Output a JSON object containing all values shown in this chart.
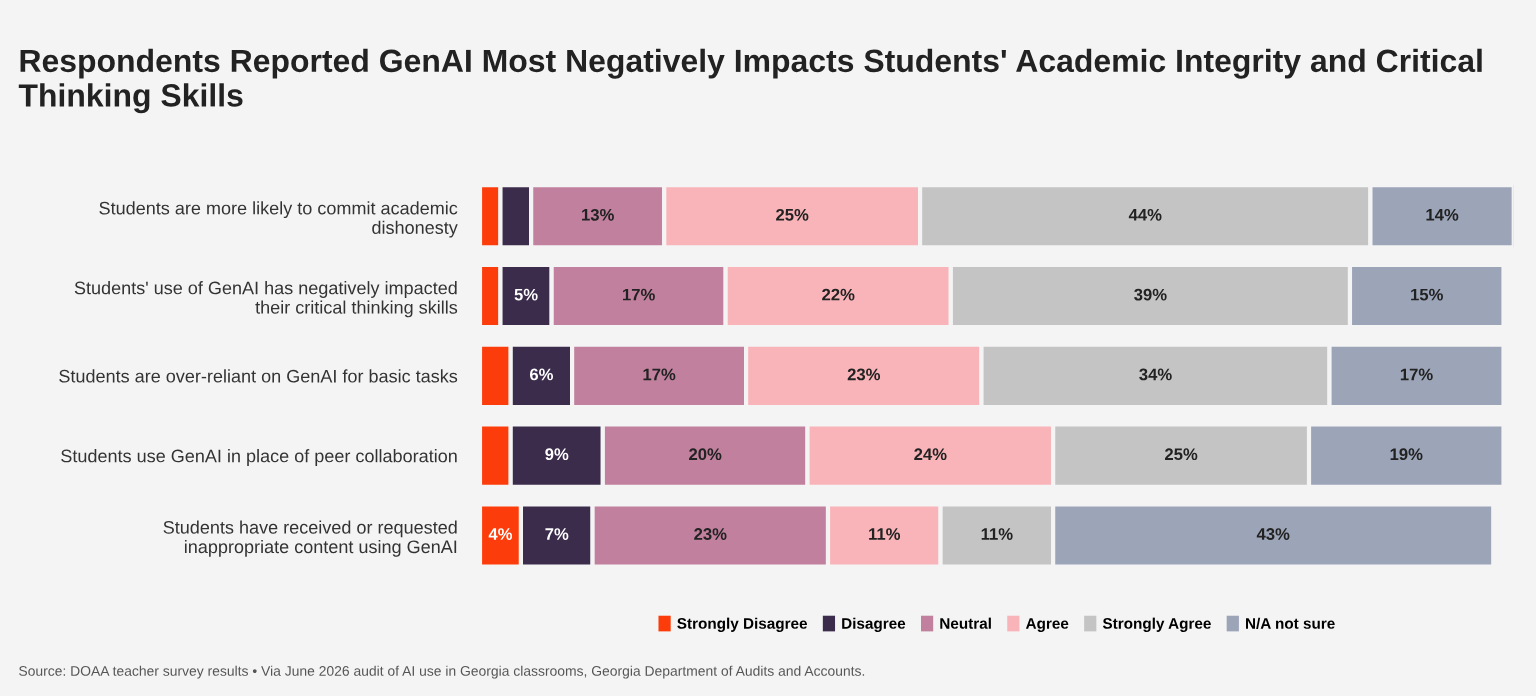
{
  "chart_data": {
    "type": "bar",
    "orientation": "horizontal",
    "stacked": true,
    "title": "Respondents Reported GenAI Most Negatively Impacts Students' Academic Integrity and Critical Thinking Skills",
    "categories": [
      "Students are more likely to commit academic\ndishonesty",
      "Students' use of GenAI has negatively impacted\ntheir critical thinking skills",
      "Students are over-reliant on GenAI for basic tasks",
      "Students use GenAI in place of peer collaboration",
      "Students have received or requested\ninappropriate content using GenAI"
    ],
    "series": [
      {
        "name": "Strongly Disagree",
        "color": "#fc3d0b",
        "values": [
          2,
          2,
          3,
          3,
          4
        ],
        "value_labels": [
          null,
          null,
          null,
          null,
          "4%"
        ]
      },
      {
        "name": "Disagree",
        "color": "#3b2c4c",
        "values": [
          3,
          5,
          6,
          9,
          7
        ],
        "value_labels": [
          null,
          "5%",
          "6%",
          "9%",
          "7%"
        ]
      },
      {
        "name": "Neutral",
        "color": "#c0809e",
        "values": [
          13,
          17,
          17,
          20,
          23
        ],
        "value_labels": [
          "13%",
          "17%",
          "17%",
          "20%",
          "23%"
        ]
      },
      {
        "name": "Agree",
        "color": "#f9b4b9",
        "values": [
          25,
          22,
          23,
          24,
          11
        ],
        "value_labels": [
          "25%",
          "22%",
          "23%",
          "24%",
          "11%"
        ]
      },
      {
        "name": "Strongly Agree",
        "color": "#c4c4c4",
        "values": [
          44,
          39,
          34,
          25,
          11
        ],
        "value_labels": [
          "44%",
          "39%",
          "34%",
          "25%",
          "11%"
        ]
      },
      {
        "name": "N/A not sure",
        "color": "#9ca4b8",
        "values": [
          14,
          15,
          17,
          19,
          43
        ],
        "value_labels": [
          "14%",
          "15%",
          "17%",
          "19%",
          "43%"
        ]
      }
    ],
    "legend": "bottom",
    "annotations": [
      "Source: DOAA teacher survey results • Via June 2026 audit of AI use in Georgia classrooms, Georgia Department of Audits and Accounts."
    ]
  }
}
